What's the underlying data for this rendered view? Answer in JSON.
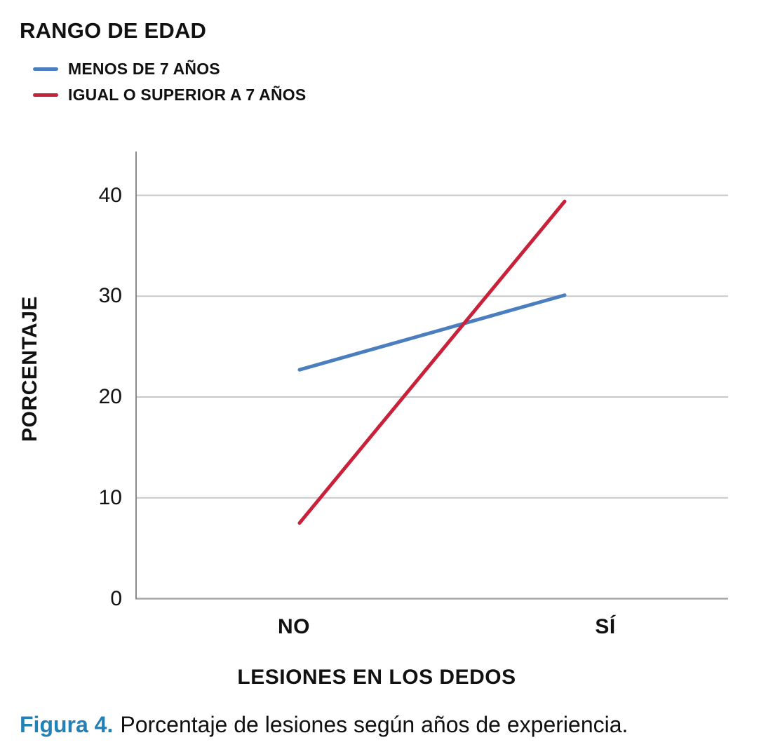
{
  "legend": {
    "title": "RANGO DE EDAD"
  },
  "chart_data": {
    "type": "line",
    "categories": [
      "NO",
      "SÍ"
    ],
    "series": [
      {
        "name": "MENOS DE 7 AÑOS",
        "values": [
          22.7,
          30.1
        ],
        "color": "#4A7EBE"
      },
      {
        "name": "IGUAL O SUPERIOR A 7 AÑOS",
        "values": [
          7.5,
          39.4
        ],
        "color": "#C9213A"
      }
    ],
    "title": "",
    "xlabel": "LESIONES EN LOS DEDOS",
    "ylabel": "PORCENTAJE",
    "ylim": [
      0,
      44
    ],
    "yticks": [
      0,
      10,
      20,
      30,
      40
    ],
    "grid": "horizontal",
    "legend_position": "top-left"
  },
  "caption": {
    "prefix": "Figura 4.",
    "text": "Porcentaje de lesiones según años de experiencia."
  },
  "style": {
    "caption_prefix_color": "#2481B5",
    "grid_color": "#C8C8C8",
    "axis_color": "#8A8A8A",
    "baseline_color": "#A6A6A6",
    "text_color": "#111111",
    "background": "#FFFFFF"
  }
}
